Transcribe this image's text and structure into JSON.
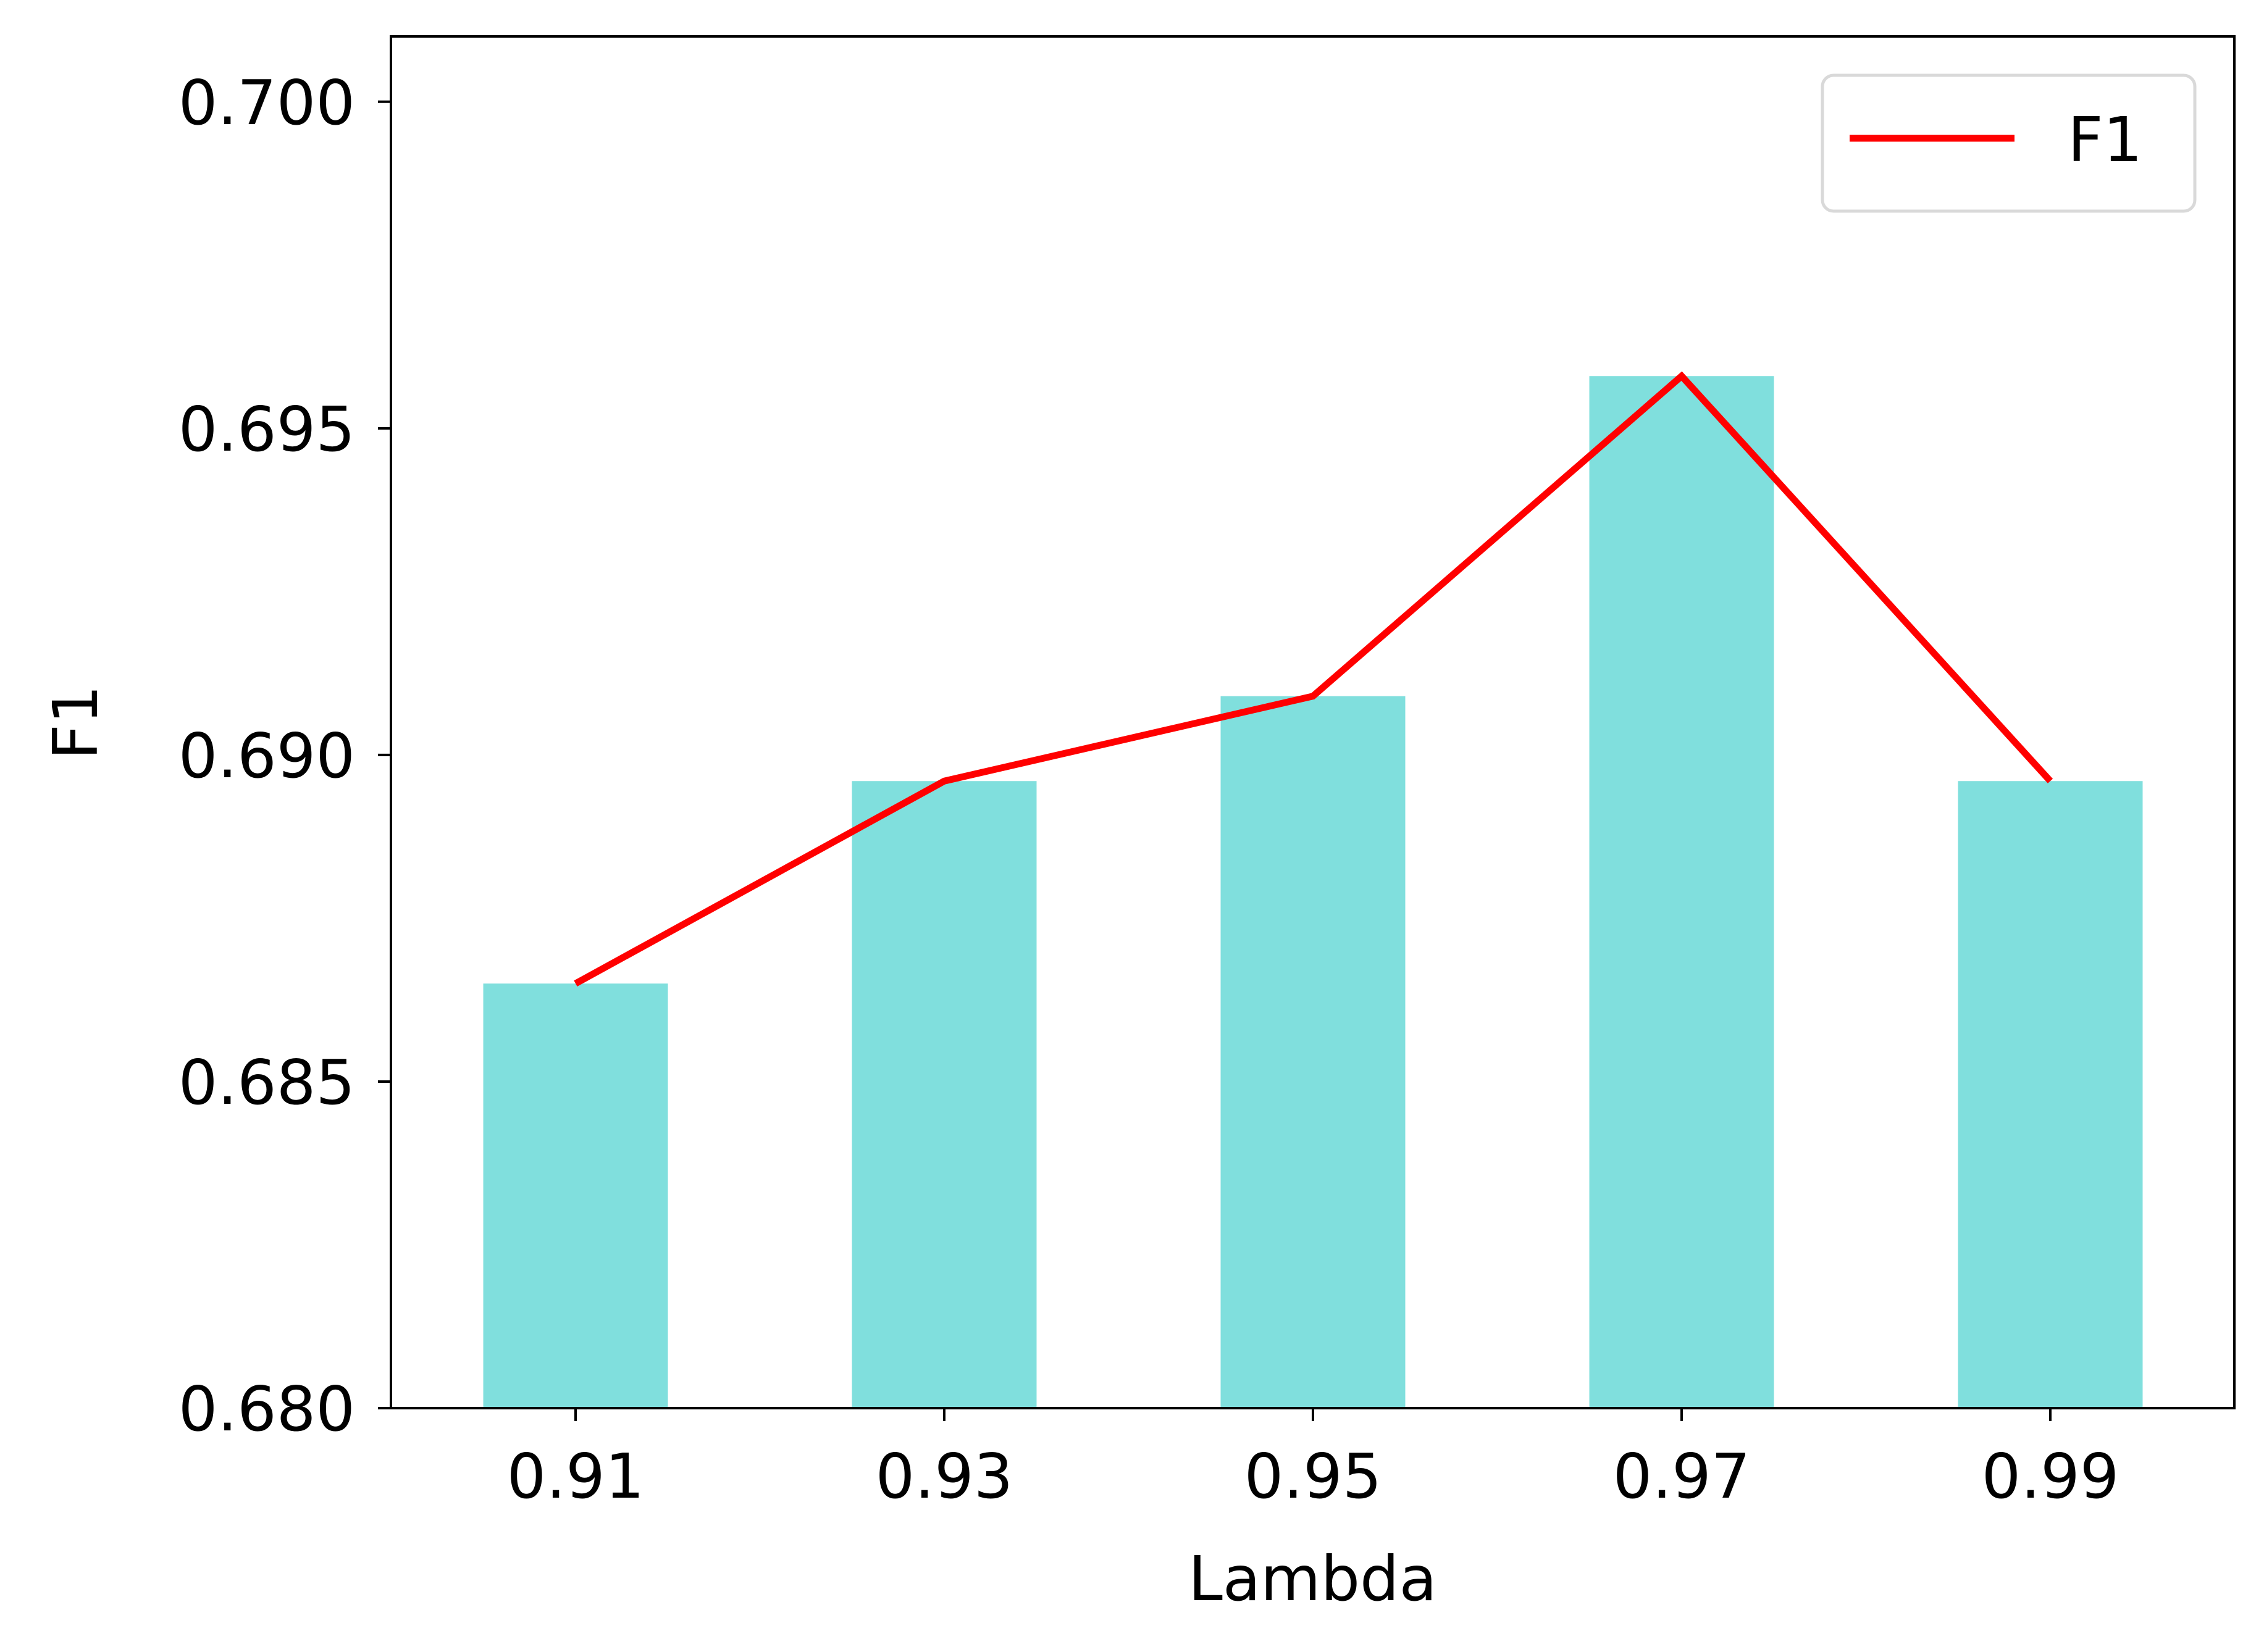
{
  "chart_data": {
    "type": "bar",
    "categories": [
      "0.91",
      "0.93",
      "0.95",
      "0.97",
      "0.99"
    ],
    "values": [
      0.6865,
      0.6896,
      0.6909,
      0.6958,
      0.6896
    ],
    "line_series": {
      "name": "F1",
      "values": [
        0.6865,
        0.6896,
        0.6909,
        0.6958,
        0.6896
      ]
    },
    "title": "",
    "xlabel": "Lambda",
    "ylabel": "F1",
    "ylim": [
      0.68,
      0.701
    ],
    "yticks": [
      "0.680",
      "0.685",
      "0.690",
      "0.695",
      "0.700"
    ],
    "ytick_values": [
      0.68,
      0.685,
      0.69,
      0.695,
      0.7
    ],
    "grid": false,
    "legend_position": "top-right",
    "colors": {
      "bar": "#80dfdd",
      "line": "#ff0000",
      "axis": "#000000",
      "legend_border": "#d9d9d9"
    }
  }
}
